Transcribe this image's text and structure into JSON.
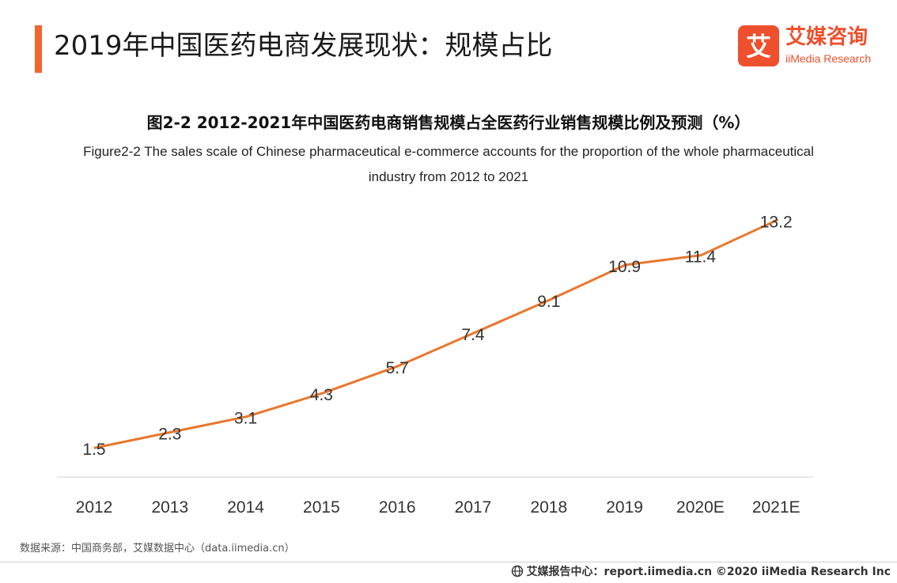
{
  "header": {
    "title": "2019年中国医药电商发展现状：规模占比"
  },
  "logo": {
    "glyph": "艾",
    "name_cn": "艾媒咨询",
    "name_en": "iiMedia Research"
  },
  "chart_data": {
    "type": "line",
    "title": "图2-2 2012-2021年中国医药电商销售规模占全医药行业销售规模比例及预测（%）",
    "subtitle": "Figure2-2 The sales scale of Chinese pharmaceutical e-commerce accounts for the proportion of the whole pharmaceutical industry from 2012 to 2021",
    "categories": [
      "2012",
      "2013",
      "2014",
      "2015",
      "2016",
      "2017",
      "2018",
      "2019",
      "2020E",
      "2021E"
    ],
    "series": [
      {
        "values": [
          1.5,
          2.3,
          3.1,
          4.3,
          5.7,
          7.4,
          9.1,
          10.9,
          11.4,
          13.2
        ]
      }
    ],
    "labels": [
      "1.5",
      "2.3",
      "3.1",
      "4.3",
      "5.7",
      "7.4",
      "9.1",
      "10.9",
      "11.4",
      "13.2"
    ],
    "line_color": "#e8772e",
    "ylim": [
      0,
      14
    ],
    "grid": false,
    "legend": "none"
  },
  "source": "数据来源：中国商务部，艾媒数据中心（data.iimedia.cn）",
  "footer": {
    "text": "艾媒报告中心：report.iimedia.cn ©2020 iiMedia Research Inc"
  }
}
